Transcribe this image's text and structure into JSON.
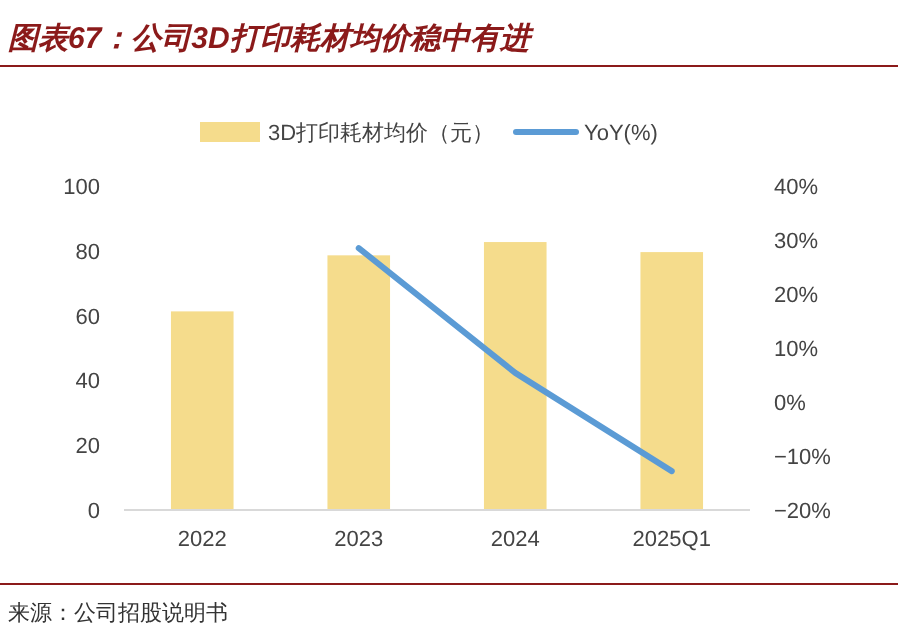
{
  "chart_data": {
    "type": "bar",
    "title": "图表67：公司3D打印耗材均价稳中有进",
    "annotations": [
      "来源：公司招股说明书"
    ],
    "categories": [
      "2022",
      "2023",
      "2024",
      "2025Q1"
    ],
    "series": [
      {
        "name": "3D打印耗材均价（元）",
        "color": "#f5dc8c",
        "values": [
          61.3,
          78.6,
          82.7,
          79.6
        ]
      },
      {
        "name": "YoY(%)",
        "type": "line",
        "axis": "y2",
        "color": "#5b9bd5",
        "values": [
          null,
          28.5,
          5.4,
          -12.8
        ]
      }
    ],
    "ylim": [
      0,
      100
    ],
    "yticks": [
      0,
      20,
      40,
      60,
      80,
      100
    ],
    "y2lim": [
      -20,
      40
    ],
    "y2ticks": [
      {
        "value": -20,
        "label": "−20%"
      },
      {
        "value": -10,
        "label": "−10%"
      },
      {
        "value": 0,
        "label": "0%"
      },
      {
        "value": 10,
        "label": "10%"
      },
      {
        "value": 20,
        "label": "20%"
      },
      {
        "value": 30,
        "label": "30%"
      },
      {
        "value": 40,
        "label": "40%"
      }
    ],
    "legend": "top",
    "grid": false
  }
}
